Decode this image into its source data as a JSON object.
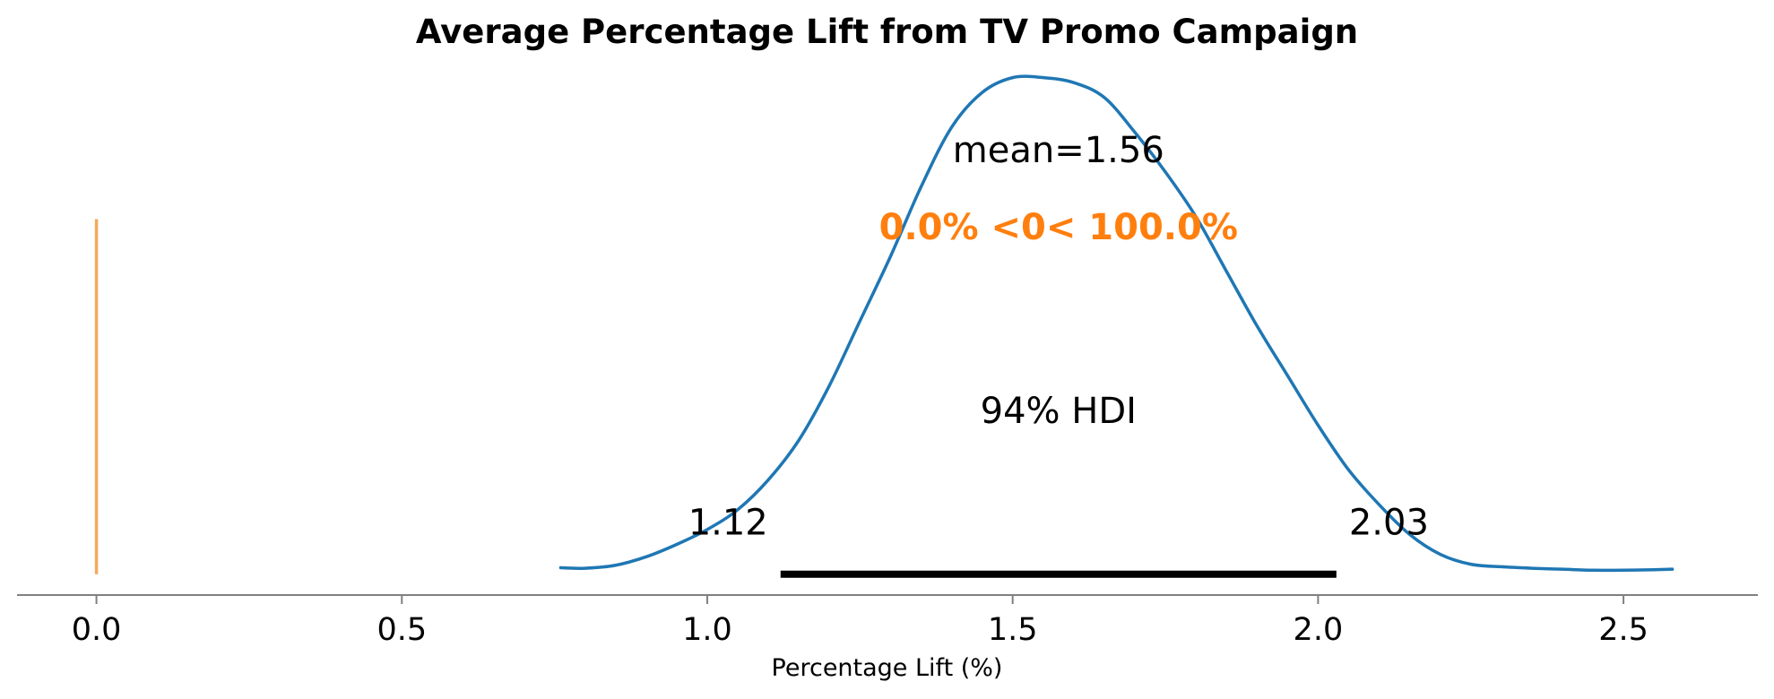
{
  "chart_data": {
    "type": "area",
    "title": "Average Percentage Lift from TV Promo Campaign",
    "xlabel": "Percentage Lift (%)",
    "ylabel": "",
    "xlim": [
      -0.13,
      2.72
    ],
    "ylim": [
      -0.042,
      1.03
    ],
    "x_ticks": [
      0.0,
      0.5,
      1.0,
      1.5,
      2.0,
      2.5
    ],
    "x_tick_labels": [
      "0.0",
      "0.5",
      "1.0",
      "1.5",
      "2.0",
      "2.5"
    ],
    "grid": false,
    "series": [
      {
        "x": [
          0.76,
          0.8,
          0.85,
          0.9,
          0.95,
          1.0,
          1.05,
          1.1,
          1.15,
          1.2,
          1.25,
          1.3,
          1.35,
          1.4,
          1.45,
          1.5,
          1.55,
          1.6,
          1.65,
          1.7,
          1.75,
          1.8,
          1.85,
          1.9,
          1.95,
          2.0,
          2.05,
          2.1,
          2.15,
          2.2,
          2.25,
          2.3,
          2.35,
          2.4,
          2.45,
          2.5,
          2.55,
          2.58
        ],
        "y": [
          0.013,
          0.012,
          0.018,
          0.035,
          0.06,
          0.09,
          0.13,
          0.19,
          0.27,
          0.38,
          0.51,
          0.64,
          0.78,
          0.9,
          0.97,
          1.0,
          1.0,
          0.99,
          0.96,
          0.89,
          0.81,
          0.72,
          0.61,
          0.5,
          0.4,
          0.3,
          0.21,
          0.14,
          0.08,
          0.04,
          0.02,
          0.015,
          0.012,
          0.01,
          0.008,
          0.008,
          0.009,
          0.01
        ],
        "color": "#1f77b4"
      }
    ],
    "reference_line": {
      "x": 0.0,
      "y_range": [
        0.0,
        0.715
      ],
      "color": "#f5a95c"
    },
    "hdi": {
      "low": 1.12,
      "high": 2.03,
      "label": "94% HDI",
      "low_label": "1.12",
      "high_label": "2.03"
    },
    "mean": {
      "value": 1.56,
      "label": "mean=1.56"
    },
    "ref_prob_label": "0.0% <0< 100.0%",
    "ref_prob_color": "#ff7f0e"
  }
}
